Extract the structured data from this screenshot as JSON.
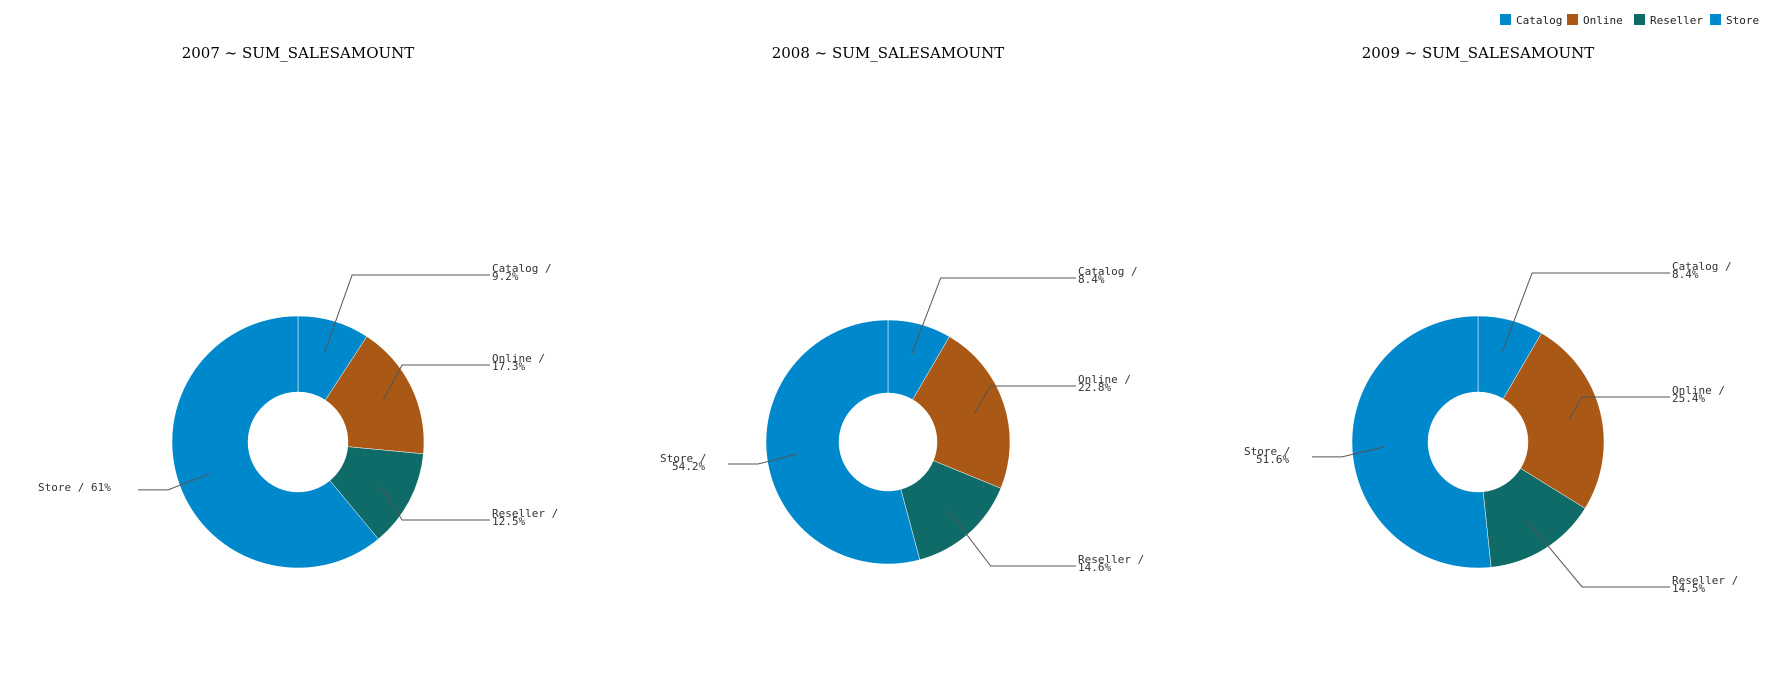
{
  "chart_data": [
    {
      "type": "pie",
      "variant": "donut",
      "title": "2007 ~ SUM_SALESAMOUNT",
      "slices": [
        {
          "name": "Catalog",
          "value": 9.2,
          "label": "Catalog / 9.2%"
        },
        {
          "name": "Online",
          "value": 17.3,
          "label": "Online / 17.3%"
        },
        {
          "name": "Reseller",
          "value": 12.5,
          "label": "Reseller / 12.5%"
        },
        {
          "name": "Store",
          "value": 61,
          "label": "Store / 61%"
        }
      ]
    },
    {
      "type": "pie",
      "variant": "donut",
      "title": "2008 ~ SUM_SALESAMOUNT",
      "slices": [
        {
          "name": "Catalog",
          "value": 8.4,
          "label": "Catalog / 8.4%"
        },
        {
          "name": "Online",
          "value": 22.8,
          "label": "Online / 22.8%"
        },
        {
          "name": "Reseller",
          "value": 14.6,
          "label": "Reseller / 14.6%"
        },
        {
          "name": "Store",
          "value": 54.2,
          "label": "Store / 54.2%"
        }
      ]
    },
    {
      "type": "pie",
      "variant": "donut",
      "title": "2009 ~ SUM_SALESAMOUNT",
      "slices": [
        {
          "name": "Catalog",
          "value": 8.4,
          "label": "Catalog / 8.4%"
        },
        {
          "name": "Online",
          "value": 25.4,
          "label": "Online / 25.4%"
        },
        {
          "name": "Reseller",
          "value": 14.5,
          "label": "Reseller / 14.5%"
        },
        {
          "name": "Store",
          "value": 51.6,
          "label": "Store / 51.6%"
        }
      ]
    }
  ],
  "legend": {
    "position": "top-right",
    "items": [
      {
        "name": "Catalog",
        "color": "#0088cc"
      },
      {
        "name": "Online",
        "color": "#a95815"
      },
      {
        "name": "Reseller",
        "color": "#0e6b68"
      },
      {
        "name": "Store",
        "color": "#0088cc"
      }
    ]
  }
}
